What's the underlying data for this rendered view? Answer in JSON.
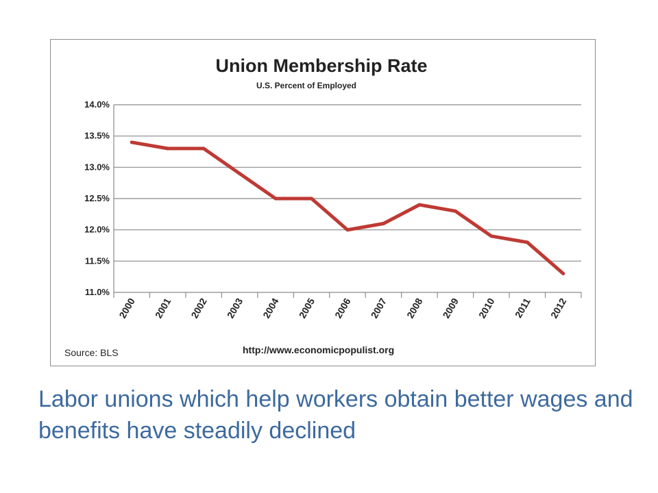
{
  "chart_data": {
    "type": "line",
    "title": "Union Membership Rate",
    "subtitle": "U.S. Percent of Employed",
    "xlabel": "",
    "ylabel": "",
    "categories": [
      "2000",
      "2001",
      "2002",
      "2003",
      "2004",
      "2005",
      "2006",
      "2007",
      "2008",
      "2009",
      "2010",
      "2011",
      "2012"
    ],
    "series": [
      {
        "values": [
          13.4,
          13.3,
          13.3,
          12.9,
          12.5,
          12.5,
          12.0,
          12.1,
          12.4,
          12.3,
          11.9,
          11.8,
          11.3
        ]
      }
    ],
    "ylim": [
      11.0,
      14.0
    ],
    "yticks": [
      "14.0%",
      "13.5%",
      "13.0%",
      "12.5%",
      "12.0%",
      "11.5%",
      "11.0%"
    ],
    "ytick_values": [
      14.0,
      13.5,
      13.0,
      12.5,
      12.0,
      11.5,
      11.0
    ],
    "grid": true,
    "line_color": "#be3a34",
    "source": "Source:  BLS",
    "url": "http://www.economicpopulist.org"
  },
  "caption": "Labor unions which help workers obtain better wages and benefits have steadily declined"
}
